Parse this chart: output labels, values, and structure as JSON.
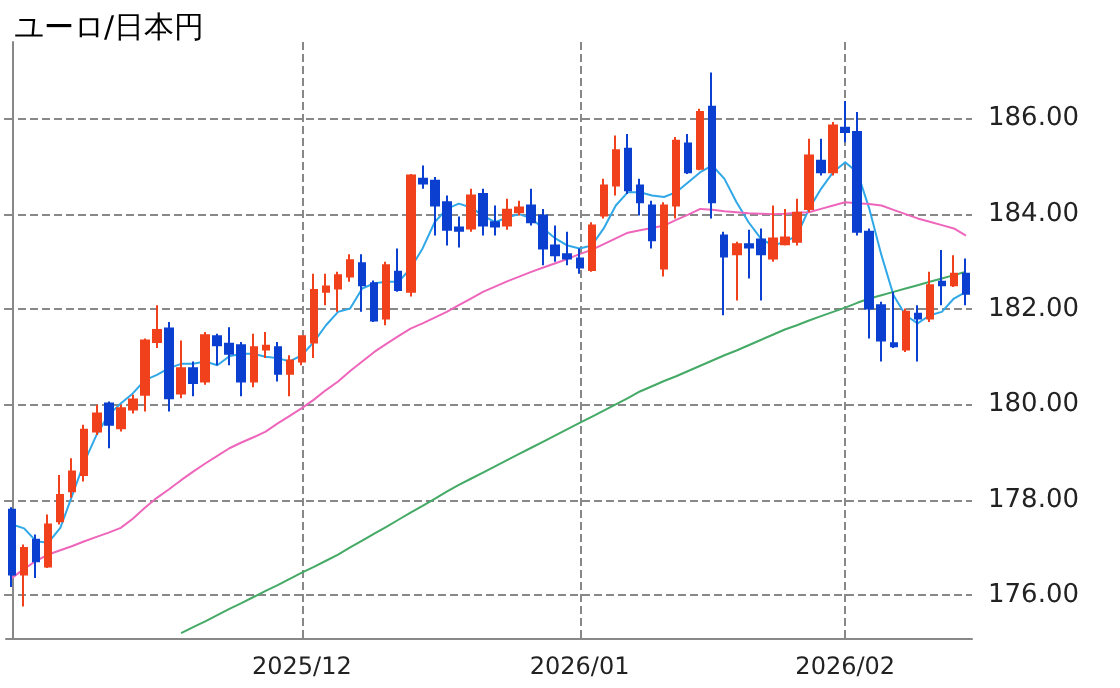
{
  "chart_data": {
    "type": "candlestick",
    "title": "ユーロ/日本円",
    "categories": [
      null,
      null,
      null,
      null,
      null,
      null,
      null,
      null,
      null,
      null,
      null,
      null,
      null,
      null,
      null,
      null,
      null,
      null,
      null,
      null,
      null,
      null,
      null,
      null,
      "2025/12",
      null,
      null,
      null,
      null,
      null,
      null,
      null,
      null,
      null,
      null,
      null,
      null,
      null,
      null,
      null,
      null,
      null,
      null,
      null,
      null,
      null,
      null,
      "2026/01",
      null,
      null,
      null,
      null,
      null,
      null,
      null,
      null,
      null,
      null,
      null,
      null,
      null,
      null,
      null,
      null,
      null,
      null,
      null,
      null,
      null,
      "2026/02",
      null,
      null,
      null,
      null,
      null,
      null,
      null,
      null,
      null,
      null
    ],
    "ylim": [
      175.1,
      187.6
    ],
    "yticks": [
      {
        "value": 176,
        "label": "176.00"
      },
      {
        "value": 178,
        "label": "178.00"
      },
      {
        "value": 180,
        "label": "180.00"
      },
      {
        "value": 182,
        "label": "182.00"
      },
      {
        "value": 184,
        "label": "184.00"
      },
      {
        "value": 186,
        "label": "186.00"
      }
    ],
    "grid": true,
    "marker": "none",
    "line_style": "solid",
    "series": [
      {
        "ohlc": [
          [
            177.79,
            177.84,
            176.17,
            176.43
          ],
          [
            176.43,
            177.06,
            175.76,
            176.99
          ],
          [
            177.16,
            177.27,
            176.36,
            176.71
          ],
          [
            176.6,
            177.69,
            176.57,
            177.48
          ],
          [
            177.55,
            178.52,
            177.48,
            178.1
          ],
          [
            178.18,
            178.87,
            178.04,
            178.59
          ],
          [
            178.52,
            179.57,
            178.38,
            179.47
          ],
          [
            179.43,
            179.99,
            179.36,
            179.81
          ],
          [
            180.02,
            180.06,
            179.08,
            179.57
          ],
          [
            179.5,
            179.99,
            179.43,
            179.92
          ],
          [
            179.89,
            180.2,
            179.81,
            180.1
          ],
          [
            180.2,
            181.38,
            179.85,
            181.34
          ],
          [
            181.31,
            182.08,
            181.18,
            181.56
          ],
          [
            181.59,
            181.73,
            179.85,
            180.13
          ],
          [
            180.23,
            181.34,
            180.13,
            180.76
          ],
          [
            180.76,
            180.9,
            180.17,
            180.45
          ],
          [
            180.48,
            181.52,
            180.41,
            181.45
          ],
          [
            181.43,
            181.48,
            180.82,
            181.24
          ],
          [
            181.27,
            181.62,
            180.82,
            181.06
          ],
          [
            181.24,
            181.31,
            180.17,
            180.48
          ],
          [
            180.48,
            181.48,
            180.36,
            181.2
          ],
          [
            181.15,
            181.52,
            180.97,
            181.23
          ],
          [
            181.2,
            181.31,
            180.48,
            180.64
          ],
          [
            180.64,
            181.03,
            180.17,
            180.92
          ],
          [
            180.9,
            181.45,
            180.82,
            181.43
          ],
          [
            181.3,
            182.74,
            180.97,
            182.4
          ],
          [
            182.36,
            182.74,
            182.08,
            182.47
          ],
          [
            182.43,
            182.78,
            181.94,
            182.71
          ],
          [
            182.68,
            183.15,
            182.57,
            183.02
          ],
          [
            182.96,
            183.15,
            181.94,
            182.5
          ],
          [
            182.54,
            182.6,
            181.73,
            181.76
          ],
          [
            181.8,
            182.99,
            181.66,
            182.92
          ],
          [
            182.78,
            183.27,
            182.36,
            182.4
          ],
          [
            182.36,
            184.83,
            182.26,
            184.8
          ],
          [
            184.73,
            185.01,
            184.52,
            184.63
          ],
          [
            184.69,
            184.77,
            183.54,
            184.17
          ],
          [
            184.24,
            184.38,
            183.33,
            183.66
          ],
          [
            183.71,
            183.94,
            183.29,
            183.64
          ],
          [
            183.69,
            184.52,
            183.62,
            184.38
          ],
          [
            184.41,
            184.52,
            183.54,
            183.75
          ],
          [
            183.82,
            184.17,
            183.54,
            183.73
          ],
          [
            183.75,
            184.31,
            183.66,
            184.08
          ],
          [
            184.03,
            184.27,
            183.96,
            184.13
          ],
          [
            184.17,
            184.52,
            183.75,
            183.82
          ],
          [
            183.96,
            184.1,
            182.92,
            183.27
          ],
          [
            183.33,
            183.75,
            182.99,
            183.13
          ],
          [
            183.15,
            183.62,
            182.92,
            183.06
          ],
          [
            183.06,
            183.27,
            182.74,
            182.87
          ],
          [
            182.82,
            183.82,
            182.78,
            183.75
          ],
          [
            183.96,
            184.73,
            183.9,
            184.59
          ],
          [
            184.59,
            185.64,
            184.38,
            185.33
          ],
          [
            185.36,
            185.67,
            184.41,
            184.49
          ],
          [
            184.59,
            184.73,
            183.96,
            184.24
          ],
          [
            184.17,
            184.27,
            183.27,
            183.44
          ],
          [
            182.85,
            184.24,
            182.68,
            184.17
          ],
          [
            184.17,
            185.61,
            183.9,
            185.53
          ],
          [
            185.47,
            185.67,
            184.83,
            184.87
          ],
          [
            184.94,
            186.2,
            184.91,
            186.13
          ],
          [
            186.24,
            186.96,
            183.9,
            184.24
          ],
          [
            183.54,
            183.62,
            181.87,
            183.1
          ],
          [
            183.15,
            183.41,
            182.18,
            183.36
          ],
          [
            183.36,
            183.66,
            182.64,
            183.29
          ],
          [
            183.46,
            183.69,
            182.18,
            183.15
          ],
          [
            183.06,
            184.17,
            182.99,
            183.48
          ],
          [
            183.36,
            184.1,
            183.33,
            183.5
          ],
          [
            183.41,
            184.31,
            183.33,
            184.02
          ],
          [
            184.1,
            185.57,
            184.03,
            185.22
          ],
          [
            185.11,
            185.57,
            184.8,
            184.87
          ],
          [
            184.87,
            185.92,
            184.8,
            185.85
          ],
          [
            185.8,
            186.36,
            185.5,
            185.71
          ],
          [
            185.71,
            186.13,
            183.54,
            183.62
          ],
          [
            183.62,
            183.69,
            181.38,
            182.01
          ],
          [
            182.08,
            182.15,
            180.9,
            181.34
          ],
          [
            181.28,
            182.36,
            181.18,
            181.22
          ],
          [
            181.15,
            182.01,
            181.1,
            181.94
          ],
          [
            181.9,
            182.08,
            180.9,
            181.8
          ],
          [
            181.8,
            182.78,
            181.73,
            182.5
          ],
          [
            182.57,
            183.24,
            182.08,
            182.5
          ],
          [
            182.5,
            183.13,
            182.46,
            182.74
          ],
          [
            182.74,
            183.06,
            182.08,
            182.32
          ]
        ],
        "colors": [
          "#0a3fd0",
          "#f0401c",
          "#0a3fd0",
          "#f0401c",
          "#f0401c",
          "#f0401c",
          "#f0401c",
          "#f0401c",
          "#0a3fd0",
          "#f0401c",
          "#f0401c",
          "#f0401c",
          "#f0401c",
          "#0a3fd0",
          "#f0401c",
          "#0a3fd0",
          "#f0401c",
          "#0a3fd0",
          "#0a3fd0",
          "#0a3fd0",
          "#f0401c",
          "#f0401c",
          "#0a3fd0",
          "#f0401c",
          "#f0401c",
          "#f0401c",
          "#f0401c",
          "#f0401c",
          "#f0401c",
          "#0a3fd0",
          "#0a3fd0",
          "#f0401c",
          "#0a3fd0",
          "#f0401c",
          "#0a3fd0",
          "#0a3fd0",
          "#0a3fd0",
          "#0a3fd0",
          "#f0401c",
          "#0a3fd0",
          "#0a3fd0",
          "#f0401c",
          "#f0401c",
          "#0a3fd0",
          "#0a3fd0",
          "#0a3fd0",
          "#0a3fd0",
          "#0a3fd0",
          "#f0401c",
          "#f0401c",
          "#f0401c",
          "#0a3fd0",
          "#0a3fd0",
          "#0a3fd0",
          "#f0401c",
          "#f0401c",
          "#0a3fd0",
          "#f0401c",
          "#0a3fd0",
          "#0a3fd0",
          "#f0401c",
          "#0a3fd0",
          "#0a3fd0",
          "#f0401c",
          "#f0401c",
          "#f0401c",
          "#f0401c",
          "#0a3fd0",
          "#f0401c",
          "#0a3fd0",
          "#0a3fd0",
          "#0a3fd0",
          "#0a3fd0",
          "#0a3fd0",
          "#f0401c",
          "#0a3fd0",
          "#f0401c",
          "#0a3fd0",
          "#f0401c",
          "#0a3fd0"
        ]
      },
      {
        "type": "line",
        "color": "#30a8e8",
        "values": [
          177.48,
          177.4,
          177.13,
          177.1,
          177.41,
          178.1,
          178.8,
          179.36,
          179.78,
          180.02,
          180.23,
          180.51,
          180.62,
          180.76,
          180.85,
          180.85,
          180.9,
          180.82,
          181.01,
          181.06,
          181.06,
          181.0,
          180.97,
          180.9,
          181.03,
          181.31,
          181.66,
          181.94,
          182.01,
          182.43,
          182.54,
          182.57,
          182.57,
          182.85,
          183.27,
          183.82,
          184.1,
          184.21,
          184.13,
          183.96,
          183.82,
          183.92,
          183.99,
          183.9,
          183.69,
          183.48,
          183.33,
          183.27,
          183.33,
          183.69,
          184.17,
          184.45,
          184.45,
          184.38,
          184.35,
          184.45,
          184.66,
          184.87,
          185.01,
          184.73,
          184.24,
          183.82,
          183.48,
          183.33,
          183.41,
          183.54,
          184.1,
          184.52,
          184.87,
          185.08,
          184.87,
          184.1,
          183.13,
          182.29,
          181.87,
          181.7,
          181.87,
          181.94,
          182.22,
          182.36
        ]
      },
      {
        "type": "line",
        "color": "#ee66bb",
        "values": [
          176.36,
          176.55,
          176.72,
          176.85,
          176.94,
          177.03,
          177.13,
          177.22,
          177.31,
          177.41,
          177.6,
          177.83,
          178.04,
          178.22,
          178.41,
          178.59,
          178.76,
          178.92,
          179.08,
          179.2,
          179.31,
          179.43,
          179.6,
          179.76,
          179.92,
          180.1,
          180.3,
          180.48,
          180.7,
          180.9,
          181.1,
          181.27,
          181.43,
          181.59,
          181.7,
          181.82,
          181.94,
          182.08,
          182.22,
          182.36,
          182.47,
          182.58,
          182.68,
          182.78,
          182.87,
          182.96,
          183.05,
          183.15,
          183.24,
          183.36,
          183.48,
          183.6,
          183.65,
          183.7,
          183.75,
          183.87,
          183.98,
          184.1,
          184.08,
          184.05,
          184.03,
          184.01,
          184.0,
          183.99,
          184.0,
          184.02,
          184.03,
          184.1,
          184.17,
          184.24,
          184.22,
          184.2,
          184.17,
          184.08,
          183.99,
          183.9,
          183.83,
          183.76,
          183.69,
          183.54
        ]
      },
      {
        "type": "line",
        "color": "#44aa66",
        "values": [
          null,
          null,
          null,
          null,
          null,
          null,
          null,
          null,
          null,
          null,
          null,
          null,
          null,
          null,
          175.2,
          175.33,
          175.45,
          175.58,
          175.71,
          175.83,
          175.96,
          176.09,
          176.21,
          176.34,
          176.47,
          176.59,
          176.72,
          176.85,
          177.0,
          177.14,
          177.29,
          177.43,
          177.58,
          177.73,
          177.87,
          178.02,
          178.17,
          178.31,
          178.44,
          178.57,
          178.7,
          178.83,
          178.96,
          179.09,
          179.22,
          179.35,
          179.48,
          179.61,
          179.74,
          179.87,
          180.0,
          180.13,
          180.27,
          180.38,
          180.49,
          180.59,
          180.7,
          180.81,
          180.92,
          181.03,
          181.13,
          181.24,
          181.35,
          181.46,
          181.57,
          181.66,
          181.76,
          181.85,
          181.94,
          182.03,
          182.13,
          182.22,
          182.29,
          182.36,
          182.43,
          182.5,
          182.57,
          182.64,
          182.71,
          182.78
        ]
      }
    ]
  }
}
